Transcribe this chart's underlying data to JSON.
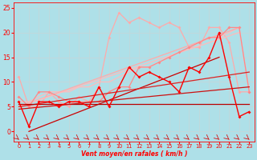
{
  "background_color": "#aee0e8",
  "grid_color": "#c0d8dc",
  "xlabel": "Vent moyen/en rafales ( km/h )",
  "xlabel_color": "#ff0000",
  "xlim": [
    -0.5,
    23.5
  ],
  "ylim": [
    -2,
    26
  ],
  "xticks": [
    0,
    1,
    2,
    3,
    4,
    5,
    6,
    7,
    8,
    9,
    10,
    11,
    12,
    13,
    14,
    15,
    16,
    17,
    18,
    19,
    20,
    21,
    22,
    23
  ],
  "yticks": [
    0,
    5,
    10,
    15,
    20,
    25
  ],
  "tick_color": "#ff0000",
  "series": [
    {
      "x": [
        0,
        1,
        2,
        3,
        4,
        5,
        6,
        7,
        8,
        9,
        10,
        11,
        12,
        13,
        14,
        15,
        16,
        17,
        18,
        19,
        20,
        21,
        22,
        23
      ],
      "y": [
        11,
        5,
        5,
        8,
        6,
        5,
        7,
        6,
        9,
        19,
        24,
        22,
        23,
        22,
        21,
        22,
        21,
        17,
        17,
        21,
        21,
        18,
        8,
        8
      ],
      "color": "#ffaaaa",
      "lw": 0.9,
      "marker": "D",
      "ms": 2.0,
      "zorder": 2
    },
    {
      "x": [
        0,
        1,
        2,
        3,
        4,
        5,
        6,
        7,
        8,
        9,
        10,
        11,
        12,
        13,
        14,
        15,
        16,
        17,
        18,
        19,
        20,
        21,
        22,
        23
      ],
      "y": [
        6,
        6,
        7,
        8,
        8,
        8,
        9,
        9,
        10,
        10,
        11,
        12,
        13,
        13,
        14,
        15,
        16,
        17,
        18,
        19,
        19,
        20,
        21,
        8
      ],
      "color": "#ffbbbb",
      "lw": 0.9,
      "marker": null,
      "ms": 0,
      "zorder": 2
    },
    {
      "x": [
        0,
        1,
        2,
        3,
        4,
        5,
        6,
        7,
        8,
        9,
        10,
        11,
        12,
        13,
        14,
        15,
        16,
        17,
        18,
        19,
        20,
        21,
        22,
        23
      ],
      "y": [
        7,
        5,
        8,
        8,
        7,
        6,
        6,
        6,
        6,
        8,
        9,
        9,
        13,
        13,
        14,
        15,
        16,
        17,
        18,
        19,
        19,
        21,
        21,
        8
      ],
      "color": "#ff8888",
      "lw": 0.9,
      "marker": "D",
      "ms": 2.0,
      "zorder": 3
    },
    {
      "x": [
        0,
        22
      ],
      "y": [
        5,
        21
      ],
      "color": "#ffaaaa",
      "lw": 0.9,
      "marker": null,
      "ms": 0,
      "zorder": 2
    },
    {
      "x": [
        0,
        22
      ],
      "y": [
        5,
        20
      ],
      "color": "#ffbbbb",
      "lw": 0.9,
      "marker": null,
      "ms": 0,
      "zorder": 2
    },
    {
      "x": [
        0,
        1,
        2,
        3,
        4,
        5,
        6,
        7,
        8,
        9,
        10,
        11,
        12,
        13,
        14,
        15,
        16,
        17,
        18,
        19,
        20,
        21,
        22,
        23
      ],
      "y": [
        6,
        1,
        6,
        6,
        5,
        6,
        6,
        5,
        9,
        5,
        9,
        13,
        11,
        12,
        11,
        10,
        8,
        13,
        12,
        15,
        20,
        11,
        3,
        4
      ],
      "color": "#ff0000",
      "lw": 1.0,
      "marker": "D",
      "ms": 2.0,
      "zorder": 4
    },
    {
      "x": [
        1,
        20
      ],
      "y": [
        0,
        15
      ],
      "color": "#cc0000",
      "lw": 0.9,
      "marker": null,
      "ms": 0,
      "zorder": 3
    },
    {
      "x": [
        0,
        23
      ],
      "y": [
        5,
        12
      ],
      "color": "#dd2222",
      "lw": 0.9,
      "marker": null,
      "ms": 0,
      "zorder": 3
    },
    {
      "x": [
        0,
        23
      ],
      "y": [
        5.5,
        5.5
      ],
      "color": "#bb0000",
      "lw": 0.9,
      "marker": null,
      "ms": 0,
      "zorder": 3
    },
    {
      "x": [
        0,
        23
      ],
      "y": [
        4.5,
        9
      ],
      "color": "#cc1111",
      "lw": 0.9,
      "marker": null,
      "ms": 0,
      "zorder": 3
    }
  ],
  "arrows": {
    "y_data": -1.5,
    "color": "#dd0000",
    "num": 24
  }
}
